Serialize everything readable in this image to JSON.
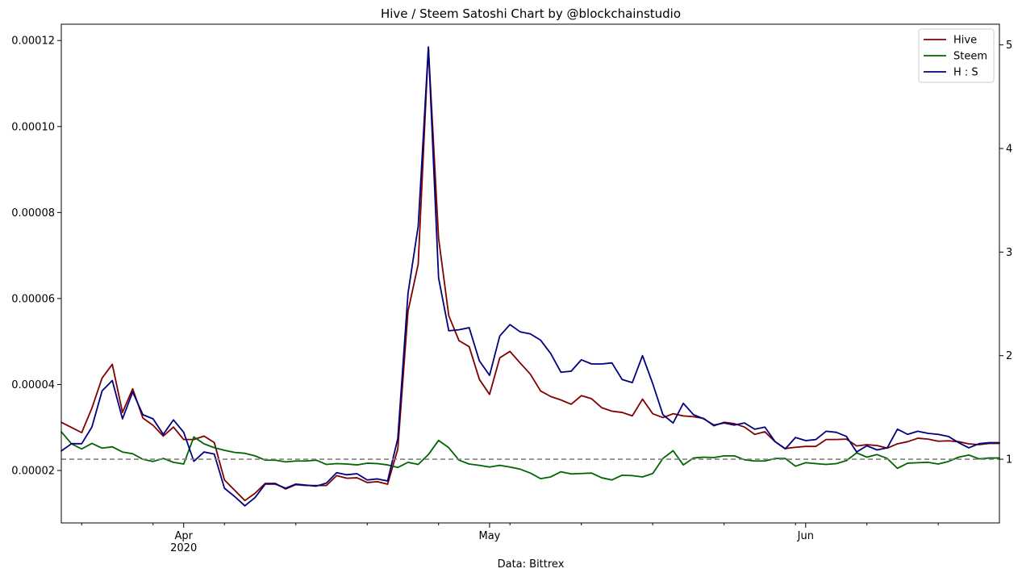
{
  "chart_data": {
    "type": "line",
    "title": "Hive / Steem Satoshi Chart by @blockchainstudio",
    "xlabel": "Data: Bittrex",
    "ylabel": "",
    "ylabel_right": "",
    "x": [
      "2020-03-20",
      "2020-03-21",
      "2020-03-22",
      "2020-03-23",
      "2020-03-24",
      "2020-03-25",
      "2020-03-26",
      "2020-03-27",
      "2020-03-28",
      "2020-03-29",
      "2020-03-30",
      "2020-03-31",
      "2020-04-01",
      "2020-04-02",
      "2020-04-03",
      "2020-04-04",
      "2020-04-05",
      "2020-04-06",
      "2020-04-07",
      "2020-04-08",
      "2020-04-09",
      "2020-04-10",
      "2020-04-11",
      "2020-04-12",
      "2020-04-13",
      "2020-04-14",
      "2020-04-15",
      "2020-04-16",
      "2020-04-17",
      "2020-04-18",
      "2020-04-19",
      "2020-04-20",
      "2020-04-21",
      "2020-04-22",
      "2020-04-23",
      "2020-04-24",
      "2020-04-25",
      "2020-04-26",
      "2020-04-27",
      "2020-04-28",
      "2020-04-29",
      "2020-04-30",
      "2020-05-01",
      "2020-05-02",
      "2020-05-03",
      "2020-05-04",
      "2020-05-05",
      "2020-05-06",
      "2020-05-07",
      "2020-05-08",
      "2020-05-09",
      "2020-05-10",
      "2020-05-11",
      "2020-05-12",
      "2020-05-13",
      "2020-05-14",
      "2020-05-15",
      "2020-05-16",
      "2020-05-17",
      "2020-05-18",
      "2020-05-19",
      "2020-05-20",
      "2020-05-21",
      "2020-05-22",
      "2020-05-23",
      "2020-05-24",
      "2020-05-25",
      "2020-05-26",
      "2020-05-27",
      "2020-05-28",
      "2020-05-29",
      "2020-05-30",
      "2020-05-31",
      "2020-06-01",
      "2020-06-02",
      "2020-06-03",
      "2020-06-04",
      "2020-06-05",
      "2020-06-06",
      "2020-06-07",
      "2020-06-08",
      "2020-06-09",
      "2020-06-10",
      "2020-06-11",
      "2020-06-12",
      "2020-06-13",
      "2020-06-14",
      "2020-06-15",
      "2020-06-16",
      "2020-06-17",
      "2020-06-18",
      "2020-06-19",
      "2020-06-20"
    ],
    "series": [
      {
        "name": "Hive",
        "axis": "left",
        "color": "#800000",
        "values": [
          3.12e-05,
          3e-05,
          2.88e-05,
          3.45e-05,
          4.15e-05,
          4.47e-05,
          3.35e-05,
          3.9e-05,
          3.22e-05,
          3.05e-05,
          2.8e-05,
          3.01e-05,
          2.72e-05,
          2.72e-05,
          2.8e-05,
          2.65e-05,
          1.78e-05,
          1.54e-05,
          1.3e-05,
          1.47e-05,
          1.7e-05,
          1.7e-05,
          1.57e-05,
          1.67e-05,
          1.65e-05,
          1.65e-05,
          1.65e-05,
          1.88e-05,
          1.82e-05,
          1.83e-05,
          1.72e-05,
          1.74e-05,
          1.68e-05,
          2.5e-05,
          5.7e-05,
          6.8e-05,
          0.0001185,
          7.4e-05,
          5.6e-05,
          5.02e-05,
          4.88e-05,
          4.12e-05,
          3.77e-05,
          4.62e-05,
          4.77e-05,
          4.5e-05,
          4.24e-05,
          3.85e-05,
          3.72e-05,
          3.64e-05,
          3.54e-05,
          3.74e-05,
          3.67e-05,
          3.46e-05,
          3.38e-05,
          3.35e-05,
          3.27e-05,
          3.66e-05,
          3.32e-05,
          3.23e-05,
          3.32e-05,
          3.27e-05,
          3.25e-05,
          3.21e-05,
          3.04e-05,
          3.12e-05,
          3.09e-05,
          3.01e-05,
          2.84e-05,
          2.9e-05,
          2.67e-05,
          2.51e-05,
          2.54e-05,
          2.56e-05,
          2.56e-05,
          2.72e-05,
          2.72e-05,
          2.73e-05,
          2.57e-05,
          2.6e-05,
          2.58e-05,
          2.52e-05,
          2.62e-05,
          2.67e-05,
          2.75e-05,
          2.73e-05,
          2.68e-05,
          2.69e-05,
          2.67e-05,
          2.62e-05,
          2.6e-05,
          2.63e-05,
          2.63e-05
        ]
      },
      {
        "name": "Steem",
        "axis": "left",
        "color": "#006400",
        "values": [
          2.9e-05,
          2.62e-05,
          2.5e-05,
          2.63e-05,
          2.52e-05,
          2.55e-05,
          2.43e-05,
          2.39e-05,
          2.26e-05,
          2.21e-05,
          2.28e-05,
          2.19e-05,
          2.15e-05,
          2.78e-05,
          2.62e-05,
          2.53e-05,
          2.47e-05,
          2.42e-05,
          2.4e-05,
          2.34e-05,
          2.24e-05,
          2.24e-05,
          2.2e-05,
          2.22e-05,
          2.22e-05,
          2.24e-05,
          2.14e-05,
          2.16e-05,
          2.15e-05,
          2.13e-05,
          2.17e-05,
          2.16e-05,
          2.13e-05,
          2.07e-05,
          2.19e-05,
          2.14e-05,
          2.37e-05,
          2.7e-05,
          2.53e-05,
          2.24e-05,
          2.15e-05,
          2.12e-05,
          2.08e-05,
          2.12e-05,
          2.08e-05,
          2.03e-05,
          1.94e-05,
          1.81e-05,
          1.85e-05,
          1.97e-05,
          1.92e-05,
          1.93e-05,
          1.94e-05,
          1.83e-05,
          1.78e-05,
          1.89e-05,
          1.88e-05,
          1.85e-05,
          1.93e-05,
          2.28e-05,
          2.46e-05,
          2.13e-05,
          2.29e-05,
          2.31e-05,
          2.3e-05,
          2.34e-05,
          2.34e-05,
          2.25e-05,
          2.22e-05,
          2.22e-05,
          2.28e-05,
          2.28e-05,
          2.1e-05,
          2.18e-05,
          2.16e-05,
          2.14e-05,
          2.16e-05,
          2.23e-05,
          2.41e-05,
          2.31e-05,
          2.37e-05,
          2.28e-05,
          2.05e-05,
          2.17e-05,
          2.18e-05,
          2.19e-05,
          2.15e-05,
          2.21e-05,
          2.31e-05,
          2.36e-05,
          2.27e-05,
          2.29e-05,
          2.29e-05
        ]
      },
      {
        "name": "H : S",
        "axis": "right",
        "color": "#000080",
        "values": [
          1.08,
          1.15,
          1.15,
          1.31,
          1.66,
          1.76,
          1.39,
          1.65,
          1.43,
          1.39,
          1.24,
          1.38,
          1.26,
          0.98,
          1.07,
          1.05,
          0.72,
          0.64,
          0.55,
          0.63,
          0.76,
          0.76,
          0.72,
          0.76,
          0.75,
          0.74,
          0.77,
          0.87,
          0.85,
          0.86,
          0.8,
          0.81,
          0.79,
          1.2,
          2.6,
          3.25,
          4.98,
          2.75,
          2.24,
          2.25,
          2.27,
          1.95,
          1.81,
          2.19,
          2.3,
          2.23,
          2.21,
          2.15,
          2.02,
          1.84,
          1.85,
          1.96,
          1.92,
          1.92,
          1.93,
          1.77,
          1.74,
          2.0,
          1.73,
          1.43,
          1.35,
          1.54,
          1.43,
          1.39,
          1.33,
          1.35,
          1.33,
          1.35,
          1.29,
          1.31,
          1.17,
          1.1,
          1.21,
          1.18,
          1.19,
          1.27,
          1.26,
          1.22,
          1.07,
          1.13,
          1.09,
          1.11,
          1.29,
          1.24,
          1.27,
          1.25,
          1.24,
          1.22,
          1.16,
          1.11,
          1.15,
          1.16,
          1.16
        ]
      }
    ],
    "reference_line": {
      "axis": "right",
      "value": 1.0,
      "color": "#808080",
      "style": "dashed"
    },
    "ylim_left": [
      7.8e-06,
      0.0001238
    ],
    "ylim_right": [
      0.385,
      5.2
    ],
    "yticks_left": [
      "0.00002",
      "0.00004",
      "0.00006",
      "0.00008",
      "0.00010",
      "0.00012"
    ],
    "yticks_left_values": [
      2e-05,
      4e-05,
      6e-05,
      8e-05,
      0.0001,
      0.00012
    ],
    "yticks_right": [
      "1",
      "2",
      "3",
      "4",
      "5"
    ],
    "yticks_right_values": [
      1,
      2,
      3,
      4,
      5
    ],
    "xticks": [
      {
        "date": "2020-04-01",
        "label": "Apr",
        "sublabel": "2020"
      },
      {
        "date": "2020-05-01",
        "label": "May",
        "sublabel": ""
      },
      {
        "date": "2020-06-01",
        "label": "Jun",
        "sublabel": ""
      }
    ],
    "minor_xtick_dates": [
      "2020-03-22",
      "2020-03-29",
      "2020-04-05",
      "2020-04-12",
      "2020-04-19",
      "2020-04-26",
      "2020-05-03",
      "2020-05-10",
      "2020-05-17",
      "2020-05-24",
      "2020-05-31",
      "2020-06-07",
      "2020-06-14"
    ],
    "grid": false,
    "legend_position": "top-right"
  }
}
